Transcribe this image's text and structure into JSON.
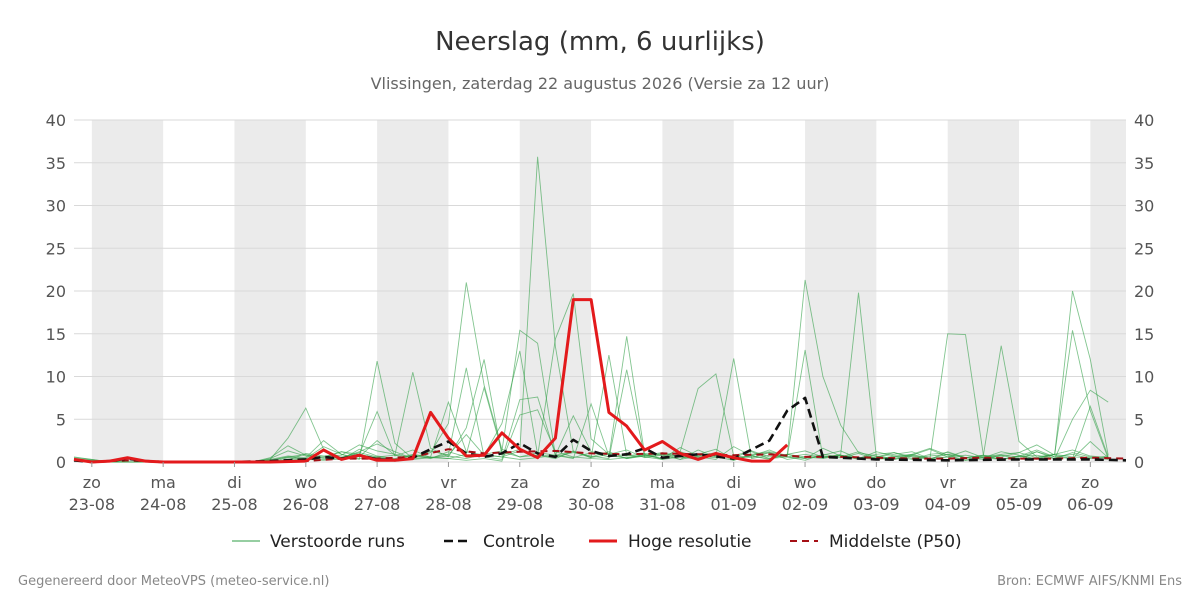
{
  "colors": {
    "weekend_band": "#ebebeb",
    "grid": "#d9d9d9",
    "members": "#2e9e44",
    "control": "#111111",
    "hires": "#e31a1c",
    "median": "#a50f15"
  },
  "chart_data": {
    "type": "line",
    "title": "Neerslag (mm, 6 uurlijks)",
    "subtitle": "Vlissingen, zaterdag 22 augustus 2026 (Versie za 12 uur)",
    "ylim": [
      0,
      40
    ],
    "y_ticks": [
      0,
      5,
      10,
      15,
      20,
      25,
      30,
      35,
      40
    ],
    "x_unit": "days since 23-08 00:00",
    "xlim": [
      -0.25,
      14.5
    ],
    "day_ticks": [
      {
        "day": "zo",
        "date": "23-08"
      },
      {
        "day": "ma",
        "date": "24-08"
      },
      {
        "day": "di",
        "date": "25-08"
      },
      {
        "day": "wo",
        "date": "26-08"
      },
      {
        "day": "do",
        "date": "27-08"
      },
      {
        "day": "vr",
        "date": "28-08"
      },
      {
        "day": "za",
        "date": "29-08"
      },
      {
        "day": "zo",
        "date": "30-08"
      },
      {
        "day": "ma",
        "date": "31-08"
      },
      {
        "day": "di",
        "date": "01-09"
      },
      {
        "day": "wo",
        "date": "02-09"
      },
      {
        "day": "do",
        "date": "03-09"
      },
      {
        "day": "vr",
        "date": "04-09"
      },
      {
        "day": "za",
        "date": "05-09"
      },
      {
        "day": "zo",
        "date": "06-09"
      }
    ],
    "shaded_days": [
      0,
      2,
      4,
      6,
      8,
      10,
      12,
      14
    ],
    "legend": [
      "Verstoorde runs",
      "Controle",
      "Hoge resolutie",
      "Middelste (P50)"
    ],
    "legend_position": "bottom",
    "series": [
      {
        "name": "Controle",
        "style": "dashed-black",
        "x": [
          -0.25,
          0,
          0.25,
          0.5,
          0.75,
          1,
          1.5,
          2,
          2.5,
          3,
          3.25,
          3.5,
          3.75,
          4,
          4.25,
          4.5,
          4.75,
          5,
          5.25,
          5.5,
          5.75,
          6,
          6.25,
          6.5,
          6.75,
          7,
          7.25,
          7.5,
          7.75,
          8,
          8.5,
          9,
          9.5,
          9.75,
          10,
          10.25,
          10.5,
          11,
          12,
          13,
          14,
          14.5
        ],
        "y": [
          0.2,
          0,
          0.1,
          0.4,
          0.1,
          0,
          0,
          0,
          0.1,
          0.3,
          0.6,
          0.4,
          0.8,
          0.3,
          0.2,
          0.5,
          1.5,
          2.4,
          1,
          0.6,
          1,
          2.2,
          1,
          0.6,
          2.6,
          1.3,
          0.7,
          0.9,
          1.6,
          0.5,
          0.9,
          0.4,
          2.5,
          6,
          7.5,
          0.6,
          0.5,
          0.3,
          0.2,
          0.3,
          0.3,
          0.2
        ]
      },
      {
        "name": "Hoge resolutie",
        "style": "solid-red",
        "x": [
          -0.25,
          0,
          0.25,
          0.5,
          0.75,
          1,
          1.5,
          2,
          2.5,
          3,
          3.25,
          3.5,
          3.75,
          4,
          4.25,
          4.5,
          4.75,
          5,
          5.25,
          5.5,
          5.75,
          6,
          6.25,
          6.5,
          6.75,
          7,
          7.25,
          7.5,
          7.75,
          8,
          8.25,
          8.5,
          8.75,
          9,
          9.25,
          9.5,
          9.75,
          10
        ],
        "y": [
          0.3,
          0,
          0.1,
          0.5,
          0.1,
          0,
          0,
          0,
          0,
          0.1,
          1.4,
          0.3,
          0.8,
          0.2,
          0.2,
          0.4,
          5.8,
          2.8,
          0.7,
          0.8,
          3.4,
          1.5,
          0.5,
          2.8,
          19,
          19,
          5.8,
          4.2,
          1.4,
          2.4,
          1,
          0.3,
          1,
          0.5,
          0.1,
          0.1,
          2,
          null
        ]
      },
      {
        "name": "Middelste (P50)",
        "style": "dashed-darkred",
        "x": [
          -0.25,
          0,
          0.5,
          1,
          1.5,
          2,
          2.5,
          3,
          3.5,
          4,
          4.5,
          5,
          5.5,
          6,
          6.5,
          7,
          7.5,
          8,
          8.5,
          9,
          9.5,
          10,
          10.5,
          11,
          11.5,
          12,
          12.5,
          13,
          13.5,
          14,
          14.5
        ],
        "y": [
          0.3,
          0,
          0.2,
          0,
          0,
          0,
          0,
          0.1,
          0.4,
          0.4,
          0.6,
          1.5,
          1,
          1.2,
          1.3,
          1,
          0.9,
          1,
          0.9,
          0.8,
          0.9,
          0.6,
          0.6,
          0.5,
          0.4,
          0.4,
          0.5,
          0.4,
          0.4,
          0.5,
          0.4
        ]
      }
    ],
    "ensemble_members": [
      [
        0.4,
        0.2,
        0.1,
        0,
        0,
        0,
        0,
        0,
        0,
        0,
        0,
        0.3,
        2.8,
        6.3,
        1.5,
        0.5,
        1.2,
        2.1,
        1.2,
        0.4,
        0.6,
        0.4,
        0.2,
        0.4,
        0.1,
        5.5,
        6.1,
        1.2,
        0.6,
        0.4,
        0.3,
        0.5,
        0.8,
        0.4,
        1.7,
        0.7,
        1.1,
        0.2,
        0.8,
        1.1,
        0.6,
        0.4,
        1.6,
        0.7,
        0.4,
        0.6,
        0.9,
        1.2,
        0.4,
        0.6,
        1.3,
        0.5,
        0.8,
        0.3,
        1.2,
        0.6,
        0.4,
        2.4,
        0.5
      ],
      [
        0.2,
        0.1,
        0,
        0,
        0,
        0,
        0,
        0,
        0,
        0,
        0,
        0.1,
        0.2,
        1,
        0.7,
        0.8,
        2,
        1.3,
        0.9,
        0.5,
        1.1,
        4.5,
        21,
        9,
        1.5,
        0.6,
        1.1,
        0.8,
        5.4,
        1.2,
        1,
        0.7,
        1,
        0.8,
        0.3,
        1.4,
        0.6,
        0.2,
        0.9,
        1.2,
        0.8,
        21.3,
        10,
        4.3,
        1.1,
        0.7,
        0.4,
        0.9,
        1.6,
        0.8,
        0.2,
        0.6,
        0.9,
        1.1,
        2,
        0.8,
        0.4,
        6.5,
        0.6
      ],
      [
        0.5,
        0.3,
        0,
        0,
        0,
        0,
        0,
        0,
        0,
        0,
        0,
        0.2,
        0.6,
        0.4,
        1.8,
        0.9,
        0.3,
        11.8,
        2.2,
        0.4,
        1.3,
        0.8,
        3.2,
        0.8,
        0.6,
        1.3,
        35.7,
        13.5,
        1.2,
        0.6,
        1.2,
        0.4,
        0.8,
        1.1,
        0.6,
        0.9,
        1.5,
        0.3,
        0.7,
        1.4,
        0.6,
        0.2,
        0.9,
        0.6,
        1.2,
        0.4,
        0.3,
        0.8,
        1.5,
        0.6,
        0.2,
        0.5,
        1.2,
        0.8,
        0.3,
        0.9,
        1.4,
        0.7,
        0.5
      ],
      [
        0.1,
        0,
        0,
        0,
        0,
        0,
        0,
        0,
        0,
        0,
        0,
        0.4,
        1.3,
        0.7,
        0.5,
        1.2,
        0.6,
        2.5,
        0.8,
        10.5,
        1.6,
        0.6,
        4,
        12,
        0.8,
        1.5,
        0.7,
        14.4,
        19.7,
        2.7,
        0.9,
        1.4,
        0.5,
        0.8,
        1.2,
        0.6,
        0.3,
        1.8,
        0.7,
        0.4,
        0.9,
        1.3,
        0.6,
        0.8,
        0.4,
        1.2,
        0.7,
        0.3,
        0.9,
        1.1,
        0.5,
        0.8,
        0.3,
        0.7,
        1.4,
        0.6,
        0.9,
        0.4,
        0.7
      ],
      [
        0.3,
        0,
        0,
        0,
        0,
        0,
        0,
        0,
        0,
        0,
        0,
        0.1,
        0.2,
        0.4,
        0.3,
        0.6,
        0.9,
        0.5,
        0.3,
        0.8,
        0.4,
        1.2,
        0.6,
        0.9,
        1.3,
        15.4,
        13.9,
        0.8,
        0.5,
        1.1,
        0.6,
        14.7,
        0.9,
        0.4,
        1.2,
        8.6,
        10.3,
        0.7,
        0.5,
        1.1,
        0.3,
        0.6,
        0.8,
        1.3,
        0.4,
        0.9,
        1.1,
        0.6,
        0.3,
        1.2,
        0.5,
        0.8,
        13.6,
        2.4,
        0.6,
        0.9,
        20,
        12,
        0.8
      ],
      [
        0.2,
        0.1,
        0,
        0,
        0,
        0,
        0,
        0,
        0,
        0,
        0,
        0,
        0.5,
        0.3,
        0.2,
        0.4,
        1.1,
        0.6,
        0.8,
        0.3,
        0.5,
        0.4,
        0.9,
        8.7,
        1.2,
        0.6,
        0.8,
        0.4,
        1.3,
        0.5,
        12.5,
        0.8,
        0.6,
        0.3,
        0.9,
        0.5,
        0.7,
        12.1,
        0.4,
        0.8,
        0.6,
        13.1,
        0.5,
        0.9,
        19.8,
        0.6,
        0.3,
        0.7,
        0.4,
        15,
        14.9,
        0.8,
        0.6,
        1.1,
        0.5,
        0.9,
        15.4,
        6,
        0.4
      ],
      [
        0.6,
        0.3,
        0,
        0,
        0,
        0,
        0,
        0,
        0,
        0,
        0,
        0.2,
        0.6,
        0.9,
        0.4,
        0.3,
        1.5,
        0.7,
        0.4,
        0.9,
        0.6,
        7,
        1.2,
        0.8,
        4.5,
        13,
        0.9,
        0.6,
        1.1,
        0.7,
        0.4,
        10.8,
        0.6,
        0.9,
        0.3,
        0.7,
        0.5,
        0.8,
        1.2,
        0.4,
        0.6,
        0.9,
        0.5,
        0.8,
        0.3,
        0.6,
        1.1,
        0.4,
        0.7,
        0.9,
        0.5,
        0.3,
        0.8,
        0.6,
        1.2,
        0.4,
        5,
        8.4,
        7
      ],
      [
        0.3,
        0.2,
        0,
        0,
        0,
        0,
        0,
        0,
        0,
        0,
        0,
        0.5,
        1.9,
        0.8,
        0.6,
        1.2,
        0.9,
        5.9,
        0.7,
        1.4,
        0.5,
        0.9,
        11,
        0.6,
        0.3,
        7.3,
        7.6,
        0.8,
        1.2,
        0.5,
        0.9,
        0.4,
        0.7,
        1,
        0.6,
        0.3,
        0.8,
        0.5,
        1.3,
        0.6,
        0.9,
        0.4,
        0.7,
        0.5,
        1,
        0.3,
        0.6,
        0.8,
        0.4,
        0.9,
        0.5,
        0.7,
        0.3,
        0.6,
        0.8,
        0.4,
        1.1,
        0.6,
        0.5
      ],
      [
        0.1,
        0,
        0,
        0,
        0,
        0,
        0,
        0,
        0,
        0,
        0,
        0.3,
        0.7,
        0.5,
        2.5,
        0.9,
        0.4,
        0.6,
        0.3,
        0.8,
        0.5,
        0.7,
        0.4,
        0.9,
        0.6,
        0.3,
        0.5,
        0.8,
        0.4,
        6.8,
        0.7,
        0.5,
        0.9,
        0.3,
        0.6,
        0.4,
        0.8,
        0.5,
        0.7,
        0.3,
        0.9,
        0.6,
        0.4,
        0.8,
        0.5,
        0.3,
        0.7,
        0.9,
        0.4,
        0.6,
        0.8,
        0.5,
        0.3,
        0.7,
        0.4,
        0.9,
        0.6,
        0.5,
        0.3
      ]
    ]
  },
  "footer": {
    "left": "Gegenereerd door MeteoVPS (meteo-service.nl)",
    "right": "Bron: ECMWF AIFS/KNMI Ens"
  }
}
